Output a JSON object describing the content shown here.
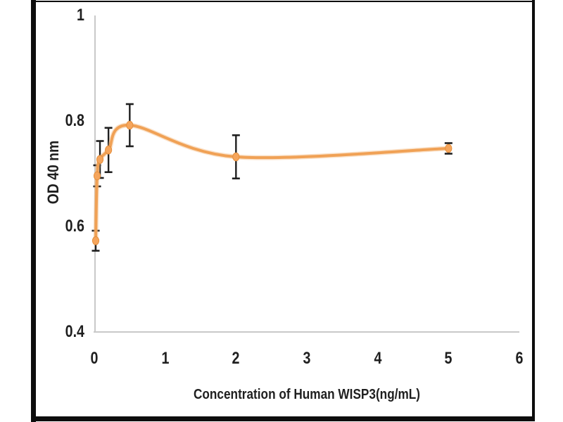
{
  "chart_data": {
    "type": "line",
    "title": "",
    "xlabel": "Concentration of Human WISP3(ng/mL)",
    "ylabel": "OD 40 nm",
    "x": [
      0.02,
      0.04,
      0.08,
      0.2,
      0.5,
      2,
      5
    ],
    "y": [
      0.573,
      0.696,
      0.727,
      0.745,
      0.792,
      0.732,
      0.748
    ],
    "y_err": [
      0.019,
      0.02,
      0.035,
      0.042,
      0.04,
      0.041,
      0.01
    ],
    "xlim": [
      0,
      6
    ],
    "ylim": [
      0.4,
      1
    ],
    "x_ticks": [
      {
        "label": "0",
        "value": 0
      },
      {
        "label": "1",
        "value": 1
      },
      {
        "label": "2",
        "value": 2
      },
      {
        "label": "3",
        "value": 3
      },
      {
        "label": "4",
        "value": 4
      },
      {
        "label": "5",
        "value": 5
      },
      {
        "label": "6",
        "value": 6
      }
    ],
    "y_ticks": [
      {
        "label": "1",
        "value": 1
      },
      {
        "label": "0.8",
        "value": 0.8
      },
      {
        "label": "0.6",
        "value": 0.6
      },
      {
        "label": "0.4",
        "value": 0.4
      }
    ],
    "grid": false,
    "legend_position": "none",
    "marker_shape": "diamond-dot",
    "colors": {
      "line": "#F0A155",
      "line_halo": "#F5BC85",
      "marker": "#F5A55C",
      "marker_edge": "#E58F3C",
      "error_bar": "#1f1f1f",
      "axis_line": "#C9C9C9",
      "text": "#1f1f1f",
      "frame": "#0d0d0d",
      "background": "#ffffff"
    }
  }
}
